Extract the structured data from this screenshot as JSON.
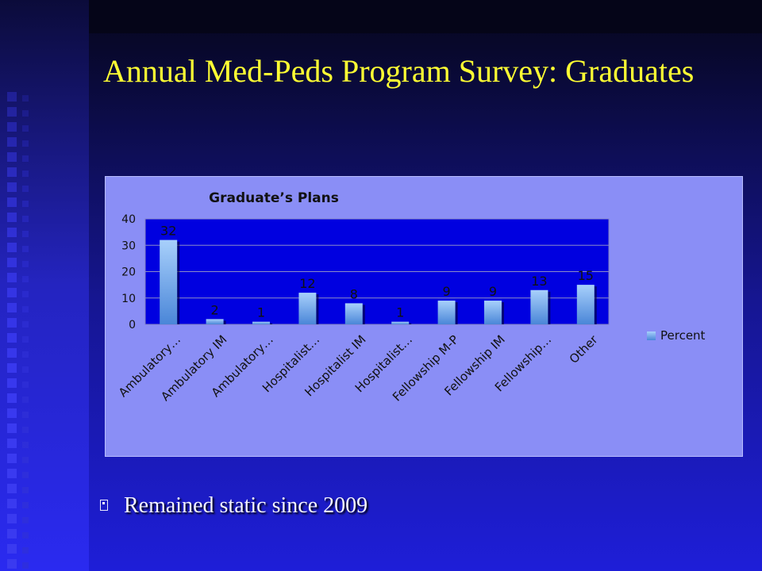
{
  "slide": {
    "title": "Annual Med-Peds Program Survey: Graduates",
    "bullet": "Remained static since 2009",
    "colors": {
      "title": "#ffff33",
      "plot_background": "#0000e0",
      "panel_background": "#8a8ef6",
      "bar": "#7ab4f0"
    }
  },
  "chart_data": {
    "type": "bar",
    "title": "Graduate’s Plans",
    "categories": [
      "Ambulatory…",
      "Ambulatory IM",
      "Ambulatory…",
      "Hospitalist…",
      "Hospitalist IM",
      "Hospitalist…",
      "Fellowship M-P",
      "Fellowship IM",
      "Fellowship…",
      "Other"
    ],
    "series": [
      {
        "name": "Percent",
        "values": [
          32,
          2,
          1,
          12,
          8,
          1,
          9,
          9,
          13,
          15
        ]
      }
    ],
    "ylim": [
      0,
      40
    ],
    "yticks": [
      0,
      10,
      20,
      30,
      40
    ],
    "grid": true,
    "legend": "right",
    "data_labels": true
  }
}
